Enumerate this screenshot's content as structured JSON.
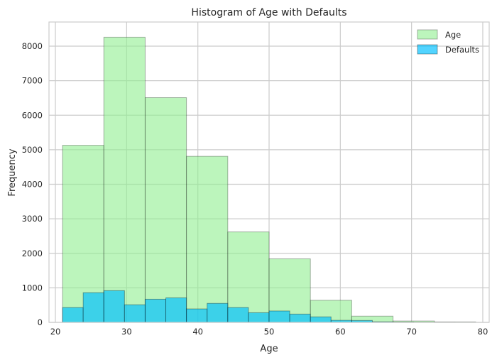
{
  "chart_data": {
    "type": "histogram",
    "title": "Histogram of Age with Defaults",
    "xlabel": "Age",
    "ylabel": "Frequency",
    "xlim": [
      19.1,
      80.9
    ],
    "ylim": [
      0,
      8700
    ],
    "xticks": [
      20,
      30,
      40,
      50,
      60,
      70,
      80
    ],
    "yticks": [
      0,
      1000,
      2000,
      3000,
      4000,
      5000,
      6000,
      7000,
      8000
    ],
    "grid": true,
    "legend_position": "top-right",
    "series": [
      {
        "name": "Age",
        "color": "#90ee90",
        "bins": [
          {
            "x0": 21.0,
            "x1": 26.8,
            "value": 5130
          },
          {
            "x0": 26.8,
            "x1": 32.6,
            "value": 8260
          },
          {
            "x0": 32.6,
            "x1": 38.4,
            "value": 6510
          },
          {
            "x0": 38.4,
            "x1": 44.2,
            "value": 4810
          },
          {
            "x0": 44.2,
            "x1": 50.0,
            "value": 2620
          },
          {
            "x0": 50.0,
            "x1": 55.8,
            "value": 1840
          },
          {
            "x0": 55.8,
            "x1": 61.6,
            "value": 640
          },
          {
            "x0": 61.6,
            "x1": 67.4,
            "value": 180
          },
          {
            "x0": 67.4,
            "x1": 73.2,
            "value": 40
          },
          {
            "x0": 73.2,
            "x1": 79.0,
            "value": 15
          }
        ]
      },
      {
        "name": "Defaults",
        "color": "#00bfff",
        "bins": [
          {
            "x0": 21.0,
            "x1": 23.9,
            "value": 430
          },
          {
            "x0": 23.9,
            "x1": 26.8,
            "value": 860
          },
          {
            "x0": 26.8,
            "x1": 29.7,
            "value": 920
          },
          {
            "x0": 29.7,
            "x1": 32.6,
            "value": 510
          },
          {
            "x0": 32.6,
            "x1": 35.5,
            "value": 670
          },
          {
            "x0": 35.5,
            "x1": 38.4,
            "value": 710
          },
          {
            "x0": 38.4,
            "x1": 41.3,
            "value": 390
          },
          {
            "x0": 41.3,
            "x1": 44.2,
            "value": 550
          },
          {
            "x0": 44.2,
            "x1": 47.1,
            "value": 430
          },
          {
            "x0": 47.1,
            "x1": 50.0,
            "value": 280
          },
          {
            "x0": 50.0,
            "x1": 52.9,
            "value": 330
          },
          {
            "x0": 52.9,
            "x1": 55.8,
            "value": 240
          },
          {
            "x0": 55.8,
            "x1": 58.7,
            "value": 160
          },
          {
            "x0": 58.7,
            "x1": 61.6,
            "value": 60
          },
          {
            "x0": 61.6,
            "x1": 64.5,
            "value": 55
          },
          {
            "x0": 64.5,
            "x1": 67.4,
            "value": 20
          },
          {
            "x0": 67.4,
            "x1": 70.3,
            "value": 12
          },
          {
            "x0": 70.3,
            "x1": 73.2,
            "value": 5
          },
          {
            "x0": 73.2,
            "x1": 76.1,
            "value": 3
          },
          {
            "x0": 76.1,
            "x1": 79.0,
            "value": 1
          }
        ]
      }
    ]
  }
}
